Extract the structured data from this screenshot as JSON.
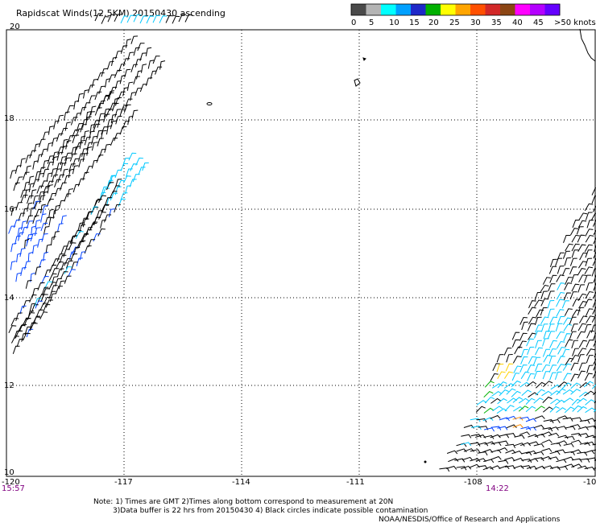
{
  "title": "Rapidscat Winds(12.5KM) 20150430 ascending",
  "legend": {
    "labels": [
      "0",
      "5",
      "10",
      "15",
      "20",
      "25",
      "30",
      "35",
      "40",
      "45",
      ">50 knots"
    ],
    "colors": [
      "#4a4a4a",
      "#b4b4b4",
      "#00ffff",
      "#00a0ff",
      "#1e28c8",
      "#00b000",
      "#ffff00",
      "#ffa500",
      "#ff5000",
      "#d22828",
      "#8b4513",
      "#ff00ff",
      "#b400ff",
      "#6400ff"
    ]
  },
  "map": {
    "longitude_labels": [
      "-120",
      "-117",
      "-114",
      "-111",
      "-108",
      "-10"
    ],
    "latitude_labels": [
      "20",
      "18",
      "16",
      "14",
      "12",
      "10"
    ],
    "pass_times": [
      "15:57",
      "14:22"
    ],
    "wind_barb_colors": {
      "low": "#000000",
      "cyan": "#00c8ff",
      "blue": "#0040ff",
      "green": "#00b000",
      "yellow": "#ffd200",
      "orange": "#ff8c00"
    }
  },
  "notes": [
    "Note: 1) Times are GMT 2)Times along bottom correspond to measurement at 20N",
    "3)Data buffer is 22 hrs from 20150430 4) Black circles indicate possible contamination",
    "NOAA/NESDIS/Office of Research and Applications"
  ]
}
